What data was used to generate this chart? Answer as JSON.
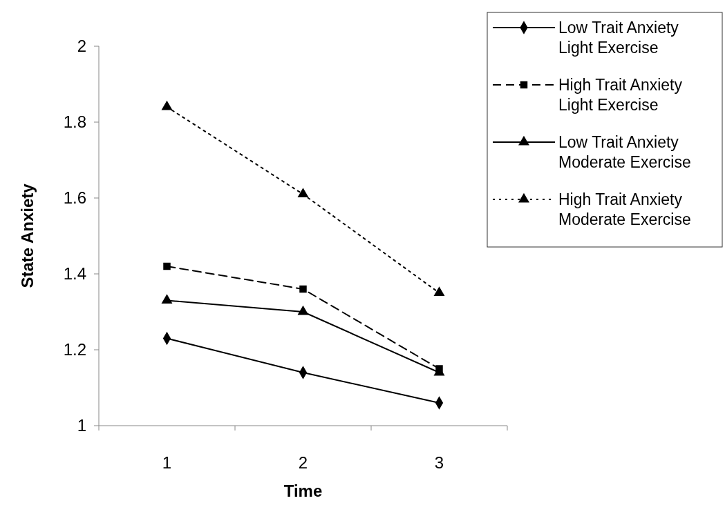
{
  "chart_data": {
    "type": "line",
    "xlabel": "Time",
    "ylabel": "State Anxiety",
    "categories": [
      "1",
      "2",
      "3"
    ],
    "ylim": [
      1,
      2
    ],
    "yticks": [
      1,
      1.2,
      1.4,
      1.6,
      1.8,
      2
    ],
    "grid": false,
    "legend": "top right",
    "series": [
      {
        "name": "Low Trait Anxiety Light Exercise",
        "color": "#000000",
        "values": [
          1.23,
          1.14,
          1.06
        ],
        "marker": "diamond",
        "line_style": "solid"
      },
      {
        "name": "High Trait Anxiety Light Exercise",
        "color": "#000000",
        "values": [
          1.42,
          1.36,
          1.15
        ],
        "marker": "square",
        "line_style": "dashed"
      },
      {
        "name": "Low Trait Anxiety Moderate Exercise",
        "color": "#000000",
        "values": [
          1.33,
          1.3,
          1.14
        ],
        "marker": "triangle",
        "line_style": "solid"
      },
      {
        "name": "High Trait Anxiety Moderate Exercise",
        "color": "#000000",
        "values": [
          1.84,
          1.61,
          1.35
        ],
        "marker": "triangle",
        "line_style": "dotted"
      }
    ]
  }
}
